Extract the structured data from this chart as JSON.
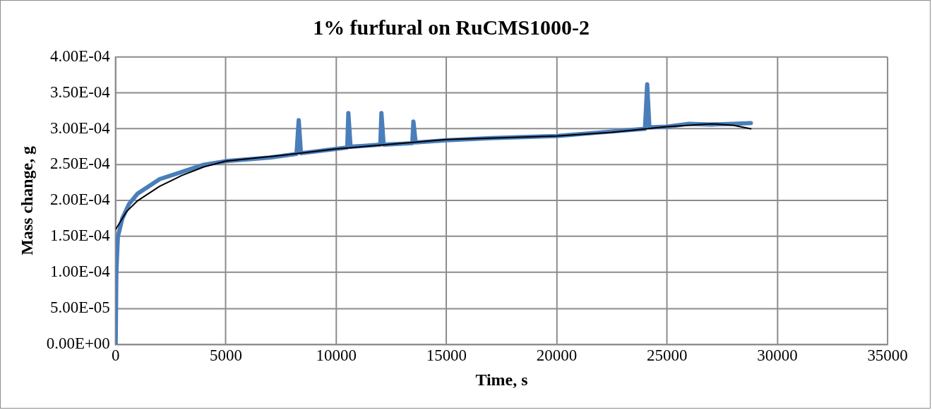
{
  "chart_data": {
    "type": "line",
    "title": "1% furfural on RuCMS1000-2",
    "xlabel": "Time, s",
    "ylabel": "Mass change, g",
    "xlim": [
      0,
      35000
    ],
    "xticks": [
      0,
      5000,
      10000,
      15000,
      20000,
      25000,
      30000,
      35000
    ],
    "ylim": [
      0,
      0.0004
    ],
    "yticks": [
      {
        "value": 0,
        "label": "0.00E+00"
      },
      {
        "value": 5e-05,
        "label": "5.00E-05"
      },
      {
        "value": 0.0001,
        "label": "1.00E-04"
      },
      {
        "value": 0.00015,
        "label": "1.50E-04"
      },
      {
        "value": 0.0002,
        "label": "2.00E-04"
      },
      {
        "value": 0.00025,
        "label": "2.50E-04"
      },
      {
        "value": 0.0003,
        "label": "3.00E-04"
      },
      {
        "value": 0.00035,
        "label": "3.50E-04"
      },
      {
        "value": 0.0004,
        "label": "4.00E-04"
      }
    ],
    "grid": true,
    "legend": false,
    "marker": "none",
    "line_style": "solid",
    "series": [
      {
        "type": "line",
        "color": "#4a7ebb",
        "x": [
          0,
          30,
          100,
          300,
          600,
          1000,
          1500,
          2000,
          3000,
          4000,
          5000,
          7000,
          8200,
          8300,
          8400,
          10000,
          10500,
          10550,
          10650,
          12000,
          12050,
          12150,
          13450,
          13500,
          13600,
          15000,
          17000,
          20000,
          22000,
          24000,
          24100,
          24200,
          25000,
          26000,
          27000,
          28000,
          28800
        ],
        "values": [
          0,
          0.0001,
          0.00015,
          0.000175,
          0.000195,
          0.00021,
          0.00022,
          0.00023,
          0.00024,
          0.00025,
          0.000255,
          0.00026,
          0.000265,
          0.000312,
          0.000266,
          0.000272,
          0.000274,
          0.000322,
          0.000275,
          0.000278,
          0.000322,
          0.000278,
          0.00028,
          0.00031,
          0.000281,
          0.000284,
          0.000287,
          0.00029,
          0.000295,
          0.0003,
          0.000362,
          0.000302,
          0.000303,
          0.000307,
          0.000306,
          0.000307,
          0.000308
        ]
      },
      {
        "type": "line",
        "color": "#000000",
        "x": [
          0,
          500,
          1000,
          2000,
          3000,
          4000,
          5000,
          7500,
          10000,
          15000,
          20000,
          22500,
          25000,
          27000,
          28000,
          28800
        ],
        "values": [
          0.00016,
          0.000185,
          0.0002,
          0.00022,
          0.000235,
          0.000247,
          0.000255,
          0.000263,
          0.000272,
          0.000285,
          0.00029,
          0.000295,
          0.000303,
          0.000307,
          0.000305,
          0.0003
        ]
      }
    ]
  }
}
